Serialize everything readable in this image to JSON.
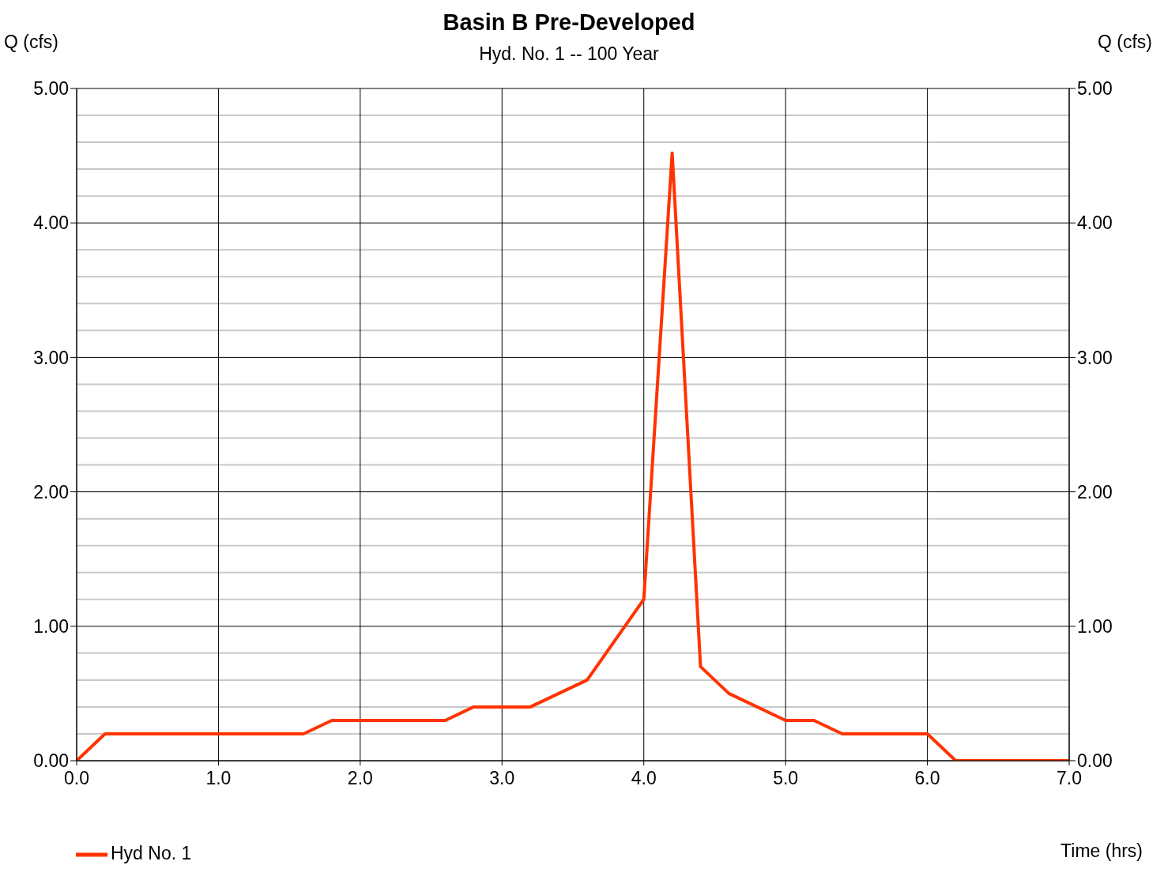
{
  "chart_data": {
    "type": "line",
    "title": "Basin B Pre-Developed",
    "subtitle": "Hyd. No. 1 -- 100 Year",
    "ylabel": "Q (cfs)",
    "y2label": "Q (cfs)",
    "xlabel": "Time (hrs)",
    "series": [
      {
        "name": "Hyd No. 1",
        "color": "#ff3300",
        "x": [
          0,
          0.2,
          1.6,
          1.8,
          2.6,
          2.8,
          3.2,
          3.6,
          4.0,
          4.2,
          4.4,
          4.6,
          5.0,
          5.2,
          5.4,
          6.0,
          6.2,
          7.0
        ],
        "values": [
          0,
          0.2,
          0.2,
          0.3,
          0.3,
          0.4,
          0.4,
          0.6,
          1.2,
          4.52,
          0.7,
          0.5,
          0.3,
          0.3,
          0.2,
          0.2,
          0,
          0
        ]
      }
    ],
    "xlim": [
      0,
      7
    ],
    "xticks": [
      {
        "value": 0,
        "label": "0.0"
      },
      {
        "value": 1,
        "label": "1.0"
      },
      {
        "value": 2,
        "label": "2.0"
      },
      {
        "value": 3,
        "label": "3.0"
      },
      {
        "value": 4,
        "label": "4.0"
      },
      {
        "value": 5,
        "label": "5.0"
      },
      {
        "value": 6,
        "label": "6.0"
      },
      {
        "value": 7,
        "label": "7.0"
      }
    ],
    "ylim": [
      0,
      5
    ],
    "yticks": [
      {
        "value": 0,
        "label": "0.00"
      },
      {
        "value": 0.2,
        "label": null
      },
      {
        "value": 0.4,
        "label": null
      },
      {
        "value": 0.6,
        "label": null
      },
      {
        "value": 0.8,
        "label": null
      },
      {
        "value": 1,
        "label": "1.00"
      },
      {
        "value": 1.2,
        "label": null
      },
      {
        "value": 1.4,
        "label": null
      },
      {
        "value": 1.6,
        "label": null
      },
      {
        "value": 1.8,
        "label": null
      },
      {
        "value": 2,
        "label": "2.00"
      },
      {
        "value": 2.2,
        "label": null
      },
      {
        "value": 2.4,
        "label": null
      },
      {
        "value": 2.6,
        "label": null
      },
      {
        "value": 2.8,
        "label": null
      },
      {
        "value": 3,
        "label": "3.00"
      },
      {
        "value": 3.2,
        "label": null
      },
      {
        "value": 3.4,
        "label": null
      },
      {
        "value": 3.6,
        "label": null
      },
      {
        "value": 3.8,
        "label": null
      },
      {
        "value": 4,
        "label": "4.00"
      },
      {
        "value": 4.2,
        "label": null
      },
      {
        "value": 4.4,
        "label": null
      },
      {
        "value": 4.6,
        "label": null
      },
      {
        "value": 4.8,
        "label": null
      },
      {
        "value": 5,
        "label": "5.00"
      }
    ],
    "y2lim": [
      0,
      5
    ],
    "y2ticks": [
      {
        "value": 0,
        "label": "0.00"
      },
      {
        "value": 1,
        "label": "1.00"
      },
      {
        "value": 2,
        "label": "2.00"
      },
      {
        "value": 3,
        "label": "3.00"
      },
      {
        "value": 4,
        "label": "4.00"
      },
      {
        "value": 5,
        "label": "5.00"
      }
    ],
    "grid": true,
    "legend": "bottom left",
    "marker": "none",
    "line_style": "solid"
  }
}
